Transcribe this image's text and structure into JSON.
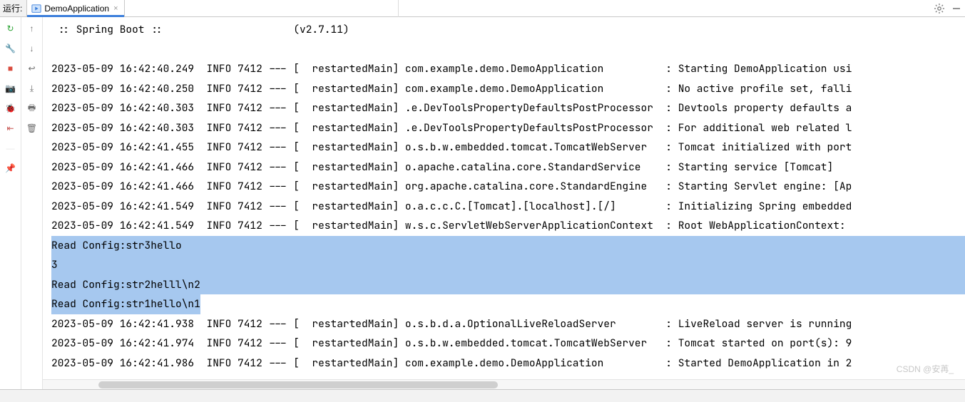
{
  "header": {
    "run_label": "运行:",
    "tab": {
      "title": "DemoApplication",
      "close_glyph": "×"
    }
  },
  "console": {
    "banner_left": " :: Spring Boot :: ",
    "banner_right": "(v2.7.11)",
    "entries": [
      {
        "ts": "2023-05-09 16:42:40.249",
        "lvl": "INFO",
        "pid": "7412",
        "thread": "restartedMain",
        "logger": "com.example.demo.DemoApplication",
        "msg": "Starting DemoApplication usi"
      },
      {
        "ts": "2023-05-09 16:42:40.250",
        "lvl": "INFO",
        "pid": "7412",
        "thread": "restartedMain",
        "logger": "com.example.demo.DemoApplication",
        "msg": "No active profile set, falli"
      },
      {
        "ts": "2023-05-09 16:42:40.303",
        "lvl": "INFO",
        "pid": "7412",
        "thread": "restartedMain",
        "logger": ".e.DevToolsPropertyDefaultsPostProcessor",
        "msg": "Devtools property defaults a"
      },
      {
        "ts": "2023-05-09 16:42:40.303",
        "lvl": "INFO",
        "pid": "7412",
        "thread": "restartedMain",
        "logger": ".e.DevToolsPropertyDefaultsPostProcessor",
        "msg": "For additional web related l"
      },
      {
        "ts": "2023-05-09 16:42:41.455",
        "lvl": "INFO",
        "pid": "7412",
        "thread": "restartedMain",
        "logger": "o.s.b.w.embedded.tomcat.TomcatWebServer",
        "msg": "Tomcat initialized with port"
      },
      {
        "ts": "2023-05-09 16:42:41.466",
        "lvl": "INFO",
        "pid": "7412",
        "thread": "restartedMain",
        "logger": "o.apache.catalina.core.StandardService",
        "msg": "Starting service [Tomcat]"
      },
      {
        "ts": "2023-05-09 16:42:41.466",
        "lvl": "INFO",
        "pid": "7412",
        "thread": "restartedMain",
        "logger": "org.apache.catalina.core.StandardEngine",
        "msg": "Starting Servlet engine: [Ap"
      },
      {
        "ts": "2023-05-09 16:42:41.549",
        "lvl": "INFO",
        "pid": "7412",
        "thread": "restartedMain",
        "logger": "o.a.c.c.C.[Tomcat].[localhost].[/]",
        "msg": "Initializing Spring embedded"
      },
      {
        "ts": "2023-05-09 16:42:41.549",
        "lvl": "INFO",
        "pid": "7412",
        "thread": "restartedMain",
        "logger": "w.s.c.ServletWebServerApplicationContext",
        "msg": "Root WebApplicationContext: "
      }
    ],
    "selected_lines": [
      "Read Config:str3hello",
      "3",
      "Read Config:str2helll\\n2"
    ],
    "partial_selected_line": "Read Config:str1hello\\n1",
    "entries_after": [
      {
        "ts": "2023-05-09 16:42:41.938",
        "lvl": "INFO",
        "pid": "7412",
        "thread": "restartedMain",
        "logger": "o.s.b.d.a.OptionalLiveReloadServer",
        "msg": "LiveReload server is running"
      },
      {
        "ts": "2023-05-09 16:42:41.974",
        "lvl": "INFO",
        "pid": "7412",
        "thread": "restartedMain",
        "logger": "o.s.b.w.embedded.tomcat.TomcatWebServer",
        "msg": "Tomcat started on port(s): 9"
      },
      {
        "ts": "2023-05-09 16:42:41.986",
        "lvl": "INFO",
        "pid": "7412",
        "thread": "restartedMain",
        "logger": "com.example.demo.DemoApplication",
        "msg": "Started DemoApplication in 2"
      }
    ],
    "layout": {
      "logger_col_width": 41,
      "separator": " --- [",
      "thread_close": "] ",
      "msg_prefix": " : "
    }
  },
  "gutter_left": [
    {
      "name": "rerun-icon",
      "glyph": "↻",
      "color": "#2aa332"
    },
    {
      "name": "wrench-icon",
      "glyph": "🔧",
      "color": "#6e6e6e"
    },
    {
      "name": "stop-icon",
      "glyph": "■",
      "color": "#d94b3d"
    },
    {
      "name": "camera-icon",
      "glyph": "📷",
      "color": "#6e6e6e"
    },
    {
      "name": "debug-restart-icon",
      "glyph": "🐞",
      "color": "#2aa332"
    },
    {
      "name": "exit-icon",
      "glyph": "⇤",
      "color": "#c75450"
    },
    {
      "name": "separator",
      "glyph": "—",
      "color": "#d0d0d0"
    },
    {
      "name": "pin-icon",
      "glyph": "📌",
      "color": "#6e6e6e"
    }
  ],
  "gutter_right": [
    {
      "name": "arrow-up-icon",
      "glyph": "↑"
    },
    {
      "name": "arrow-down-icon",
      "glyph": "↓"
    },
    {
      "name": "soft-wrap-icon",
      "glyph": "↩"
    },
    {
      "name": "scroll-end-icon",
      "glyph": "⤓"
    },
    {
      "name": "print-icon",
      "glyph": "🖶"
    },
    {
      "name": "trash-icon",
      "glyph": "🗑"
    }
  ],
  "watermark": "CSDN @安苒_",
  "colors": {
    "tab_active_underline": "#3b7edb",
    "selection_bg": "#a6c8ef",
    "border": "#c9c9c9",
    "scrollbar_thumb": "#cfcfcf"
  }
}
